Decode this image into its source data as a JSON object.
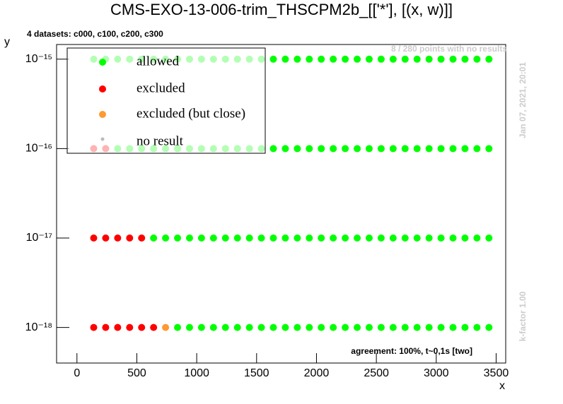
{
  "chart_data": {
    "type": "scatter",
    "title": "CMS-EXO-13-006-trim_THSCPM2b_[['*'], [(x, w)]]",
    "subtitle": "4 datasets: c000, c100, c200, c300",
    "annotations": [
      "8 / 280 points with no results",
      "Jan 07, 2021, 20:01",
      "k-factor 1.00",
      "agreement: 100%, t~0,1s [two]"
    ],
    "xlabel": "x",
    "ylabel": "y",
    "xlim": [
      -170,
      3580
    ],
    "xticks": [
      0,
      500,
      1000,
      1500,
      2000,
      2500,
      3000,
      3500
    ],
    "ylim": [
      4e-19,
      1.46e-15
    ],
    "ylog": true,
    "yticks": [
      {
        "value": 1e-18,
        "label": "10⁻¹⁸"
      },
      {
        "value": 1e-17,
        "label": "10⁻¹⁷"
      },
      {
        "value": 1e-16,
        "label": "10⁻¹⁶"
      },
      {
        "value": 1e-15,
        "label": "10⁻¹⁵"
      }
    ],
    "legend": "top-left",
    "series": [
      {
        "name": "allowed",
        "color": "#00ff00",
        "x": [
          140,
          240,
          340,
          440,
          540,
          640,
          740,
          840,
          940,
          1040,
          1140,
          1240,
          1340,
          1440,
          1540,
          1640,
          1740,
          1840,
          1940,
          2040,
          2140,
          2240,
          2340,
          2440,
          2540,
          2640,
          2740,
          2840,
          2940,
          3040,
          3140,
          3240,
          3340,
          3440,
          340,
          440,
          540,
          640,
          740,
          840,
          940,
          1040,
          1140,
          1240,
          1340,
          1440,
          1540,
          1640,
          1740,
          1840,
          1940,
          2040,
          2140,
          2240,
          2340,
          2440,
          2540,
          2640,
          2740,
          2840,
          2940,
          3040,
          3140,
          3240,
          3340,
          3440,
          640,
          740,
          840,
          940,
          1040,
          1140,
          1240,
          1340,
          1440,
          1540,
          1640,
          1740,
          1840,
          1940,
          2040,
          2140,
          2240,
          2340,
          2440,
          2540,
          2640,
          2740,
          2840,
          2940,
          3040,
          3140,
          3240,
          3340,
          3440,
          840,
          940,
          1040,
          1140,
          1240,
          1340,
          1440,
          1540,
          1640,
          1740,
          1840,
          1940,
          2040,
          2140,
          2240,
          2340,
          2440,
          2540,
          2640,
          2740,
          2840,
          2940,
          3040,
          3140,
          3240,
          3340,
          3440
        ],
        "y": [
          1e-15,
          1e-15,
          1e-15,
          1e-15,
          1e-15,
          1e-15,
          1e-15,
          1e-15,
          1e-15,
          1e-15,
          1e-15,
          1e-15,
          1e-15,
          1e-15,
          1e-15,
          1e-15,
          1e-15,
          1e-15,
          1e-15,
          1e-15,
          1e-15,
          1e-15,
          1e-15,
          1e-15,
          1e-15,
          1e-15,
          1e-15,
          1e-15,
          1e-15,
          1e-15,
          1e-15,
          1e-15,
          1e-15,
          1e-15,
          1e-16,
          1e-16,
          1e-16,
          1e-16,
          1e-16,
          1e-16,
          1e-16,
          1e-16,
          1e-16,
          1e-16,
          1e-16,
          1e-16,
          1e-16,
          1e-16,
          1e-16,
          1e-16,
          1e-16,
          1e-16,
          1e-16,
          1e-16,
          1e-16,
          1e-16,
          1e-16,
          1e-16,
          1e-16,
          1e-16,
          1e-16,
          1e-16,
          1e-16,
          1e-16,
          1e-16,
          1e-16,
          1e-17,
          1e-17,
          1e-17,
          1e-17,
          1e-17,
          1e-17,
          1e-17,
          1e-17,
          1e-17,
          1e-17,
          1e-17,
          1e-17,
          1e-17,
          1e-17,
          1e-17,
          1e-17,
          1e-17,
          1e-17,
          1e-17,
          1e-17,
          1e-17,
          1e-17,
          1e-17,
          1e-17,
          1e-17,
          1e-17,
          1e-17,
          1e-17,
          1e-17,
          1e-18,
          1e-18,
          1e-18,
          1e-18,
          1e-18,
          1e-18,
          1e-18,
          1e-18,
          1e-18,
          1e-18,
          1e-18,
          1e-18,
          1e-18,
          1e-18,
          1e-18,
          1e-18,
          1e-18,
          1e-18,
          1e-18,
          1e-18,
          1e-18,
          1e-18,
          1e-18,
          1e-18,
          1e-18,
          1e-18,
          1e-18
        ]
      },
      {
        "name": "excluded",
        "color": "#ff0000",
        "x": [
          140,
          240,
          140,
          240,
          340,
          440,
          540,
          140,
          240,
          340,
          440,
          540,
          640
        ],
        "y": [
          1e-16,
          1e-16,
          1e-17,
          1e-17,
          1e-17,
          1e-17,
          1e-17,
          1e-18,
          1e-18,
          1e-18,
          1e-18,
          1e-18,
          1e-18
        ]
      },
      {
        "name": "excluded (but close)",
        "color": "#ff9933",
        "x": [
          740
        ],
        "y": [
          1e-18
        ]
      },
      {
        "name": "no result",
        "color": "#bbbbbb",
        "x": [],
        "y": []
      }
    ]
  }
}
